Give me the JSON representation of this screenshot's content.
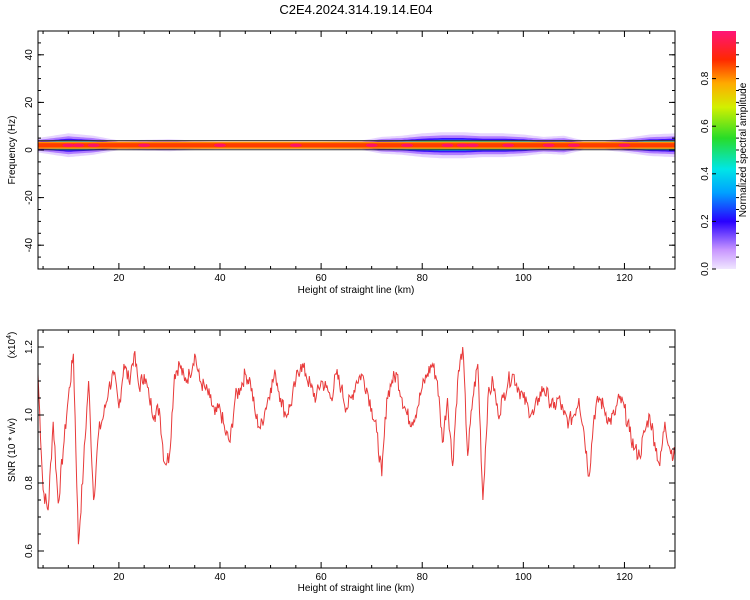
{
  "title": "C2E4.2024.314.19.14.E04",
  "chart_data": [
    {
      "type": "heatmap",
      "name": "spectrogram",
      "xlabel": "Height of straight line (km)",
      "ylabel": "Frequency (Hz)",
      "xlim": [
        4,
        130
      ],
      "ylim": [
        -50,
        50
      ],
      "xticks": [
        20,
        40,
        60,
        80,
        100,
        120
      ],
      "yticks": [
        -40,
        -20,
        0,
        20,
        40
      ],
      "colorbar": {
        "label": "Normalized spectral amplitude",
        "range": [
          0,
          1
        ],
        "ticks": [
          0.0,
          0.2,
          0.4,
          0.6,
          0.8
        ],
        "tick_labels": [
          "0.0",
          "0.2",
          "0.4",
          "0.6",
          "0.8"
        ]
      },
      "band_center_hz": 2,
      "band_halfwidth_hz": 1.5,
      "spread_profile": {
        "x": [
          4,
          10,
          15,
          20,
          30,
          40,
          50,
          60,
          68,
          72,
          76,
          80,
          84,
          88,
          92,
          96,
          100,
          104,
          108,
          112,
          116,
          120,
          125,
          130
        ],
        "halfwidth_hz": [
          3,
          5,
          4,
          2,
          2.5,
          1.5,
          1.5,
          1.5,
          2,
          3.5,
          4,
          5,
          5.5,
          5.5,
          5,
          5,
          4.5,
          3.5,
          4,
          2,
          2,
          3,
          4.5,
          5
        ]
      },
      "hot_spots_x": [
        10,
        12,
        15,
        25,
        40,
        55,
        70,
        77,
        85,
        88,
        90,
        97,
        105,
        110,
        120
      ]
    },
    {
      "type": "line",
      "name": "snr",
      "xlabel": "Height of straight line (km)",
      "ylabel": "SNR (10 * v/v)",
      "y_multiplier_label": "(x10",
      "y_multiplier_exp": "4",
      "y_multiplier_close": ")",
      "xlim": [
        4,
        130
      ],
      "ylim": [
        0.55,
        1.25
      ],
      "xticks": [
        20,
        40,
        60,
        80,
        100,
        120
      ],
      "yticks": [
        0.6,
        0.8,
        1.0,
        1.2
      ],
      "ytick_labels": [
        "0.6",
        "0.8",
        "1.0",
        "1.2"
      ],
      "color": "#e83a3a",
      "series": [
        {
          "x": [
            4,
            5,
            6,
            7,
            8,
            9,
            10,
            11,
            12,
            13,
            14,
            15,
            16,
            17,
            18,
            19,
            20,
            21,
            22,
            23,
            24,
            25,
            26,
            27,
            28,
            29,
            30,
            31,
            32,
            33,
            34,
            35,
            36,
            37,
            38,
            39,
            40,
            41,
            42,
            43,
            44,
            45,
            46,
            47,
            48,
            49,
            50,
            51,
            52,
            53,
            54,
            55,
            56,
            57,
            58,
            59,
            60,
            61,
            62,
            63,
            64,
            65,
            66,
            67,
            68,
            69,
            70,
            71,
            72,
            73,
            74,
            75,
            76,
            77,
            78,
            79,
            80,
            81,
            82,
            83,
            84,
            85,
            86,
            87,
            88,
            89,
            90,
            91,
            92,
            93,
            94,
            95,
            96,
            97,
            98,
            99,
            100,
            101,
            102,
            103,
            104,
            105,
            106,
            107,
            108,
            109,
            110,
            111,
            112,
            113,
            114,
            115,
            116,
            117,
            118,
            119,
            120,
            121,
            122,
            123,
            124,
            125,
            126,
            127,
            128,
            129,
            130
          ],
          "values": [
            1.12,
            0.78,
            0.72,
            0.98,
            0.74,
            0.9,
            1.05,
            1.18,
            0.62,
            0.85,
            1.1,
            0.75,
            0.95,
            1.0,
            1.08,
            1.12,
            1.02,
            1.15,
            1.1,
            1.18,
            1.08,
            1.12,
            1.05,
            1.0,
            1.02,
            0.86,
            0.88,
            1.12,
            1.15,
            1.1,
            1.12,
            1.18,
            1.1,
            1.08,
            1.05,
            1.0,
            1.02,
            0.95,
            0.92,
            1.05,
            1.08,
            1.12,
            1.1,
            1.0,
            0.96,
            1.02,
            1.08,
            1.12,
            1.05,
            1.0,
            1.03,
            1.1,
            1.15,
            1.12,
            1.08,
            1.05,
            1.1,
            1.08,
            1.05,
            1.12,
            1.08,
            1.02,
            1.05,
            1.1,
            1.12,
            1.08,
            1.02,
            0.95,
            0.82,
            1.05,
            1.1,
            1.12,
            1.05,
            1.0,
            0.98,
            1.02,
            1.08,
            1.12,
            1.15,
            1.1,
            0.92,
            1.05,
            0.85,
            1.1,
            1.2,
            0.88,
            1.05,
            1.15,
            0.75,
            1.05,
            1.1,
            1.0,
            1.05,
            1.1,
            1.12,
            1.08,
            1.05,
            1.02,
            1.0,
            1.05,
            1.08,
            1.05,
            1.02,
            1.05,
            1.0,
            0.98,
            1.0,
            1.05,
            0.95,
            0.82,
            1.0,
            1.05,
            1.02,
            0.98,
            1.0,
            1.05,
            1.02,
            0.95,
            0.9,
            0.88,
            0.95,
            1.0,
            0.92,
            0.85,
            0.98,
            0.9,
            0.88
          ]
        }
      ]
    }
  ]
}
